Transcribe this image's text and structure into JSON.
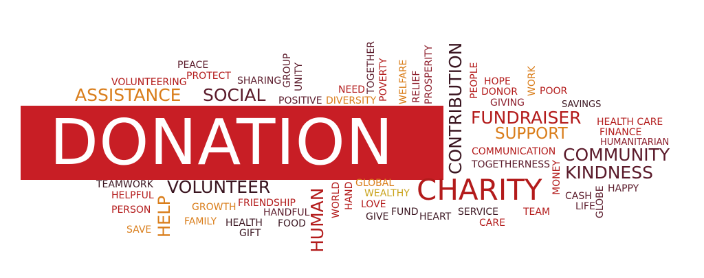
{
  "colors": {
    "banner": "#c81e25",
    "banner_text": "#ffffff",
    "dark_red": "#8c1d2b",
    "red": "#b31b1b",
    "maroon": "#5a1a2a",
    "orange": "#d97d1a",
    "gold": "#c9a31b",
    "bright_red": "#cc2a1c"
  },
  "main": {
    "word": "DONATION"
  },
  "words": {
    "peace": "PEACE",
    "protect": "PROTECT",
    "volunteering": "VOLUNTEERING",
    "sharing": "SHARING",
    "group": "GROUP",
    "unity": "UNITY",
    "assistance": "ASSISTANCE",
    "social": "SOCIAL",
    "positive": "POSITIVE",
    "need": "NEED",
    "diversity": "DIVERSITY",
    "together": "TOGETHER",
    "poverty": "POVERTY",
    "welfare": "WELFARE",
    "relief": "RELIEF",
    "prosperity": "PROSPERITY",
    "contribution": "CONTRIBUTION",
    "people": "PEOPLE",
    "hope": "HOPE",
    "donor": "DONOR",
    "giving": "GIVING",
    "work": "WORK",
    "poor": "POOR",
    "savings": "SAVINGS",
    "fundraiser": "FUNDRAISER",
    "health_care": "HEALTH CARE",
    "finance": "FINANCE",
    "support": "SUPPORT",
    "humanitarian": "HUMANITARIAN",
    "communication": "COMMUNICATION",
    "community": "COMMUNITY",
    "togetherness": "TOGETHERNESS",
    "money": "MONEY",
    "kindness": "KINDNESS",
    "happy": "HAPPY",
    "globe": "GLOBE",
    "cash": "CASH",
    "life": "LIFE",
    "teamwork": "TEAMWORK",
    "volunteer": "VOLUNTEER",
    "helpful": "HELPFUL",
    "help": "HELP",
    "person": "PERSON",
    "growth": "GROWTH",
    "friendship": "FRIENDSHIP",
    "handful": "HANDFUL",
    "save": "SAVE",
    "family": "FAMILY",
    "health": "HEALTH",
    "gift": "GIFT",
    "food": "FOOD",
    "human": "HUMAN",
    "world": "WORLD",
    "hand": "HAND",
    "global": "GLOBAL",
    "wealthy": "WEALTHY",
    "love": "LOVE",
    "give": "GIVE",
    "fund": "FUND",
    "charity": "CHARITY",
    "heart": "HEART",
    "service": "SERVICE",
    "care": "CARE",
    "team": "TEAM"
  }
}
